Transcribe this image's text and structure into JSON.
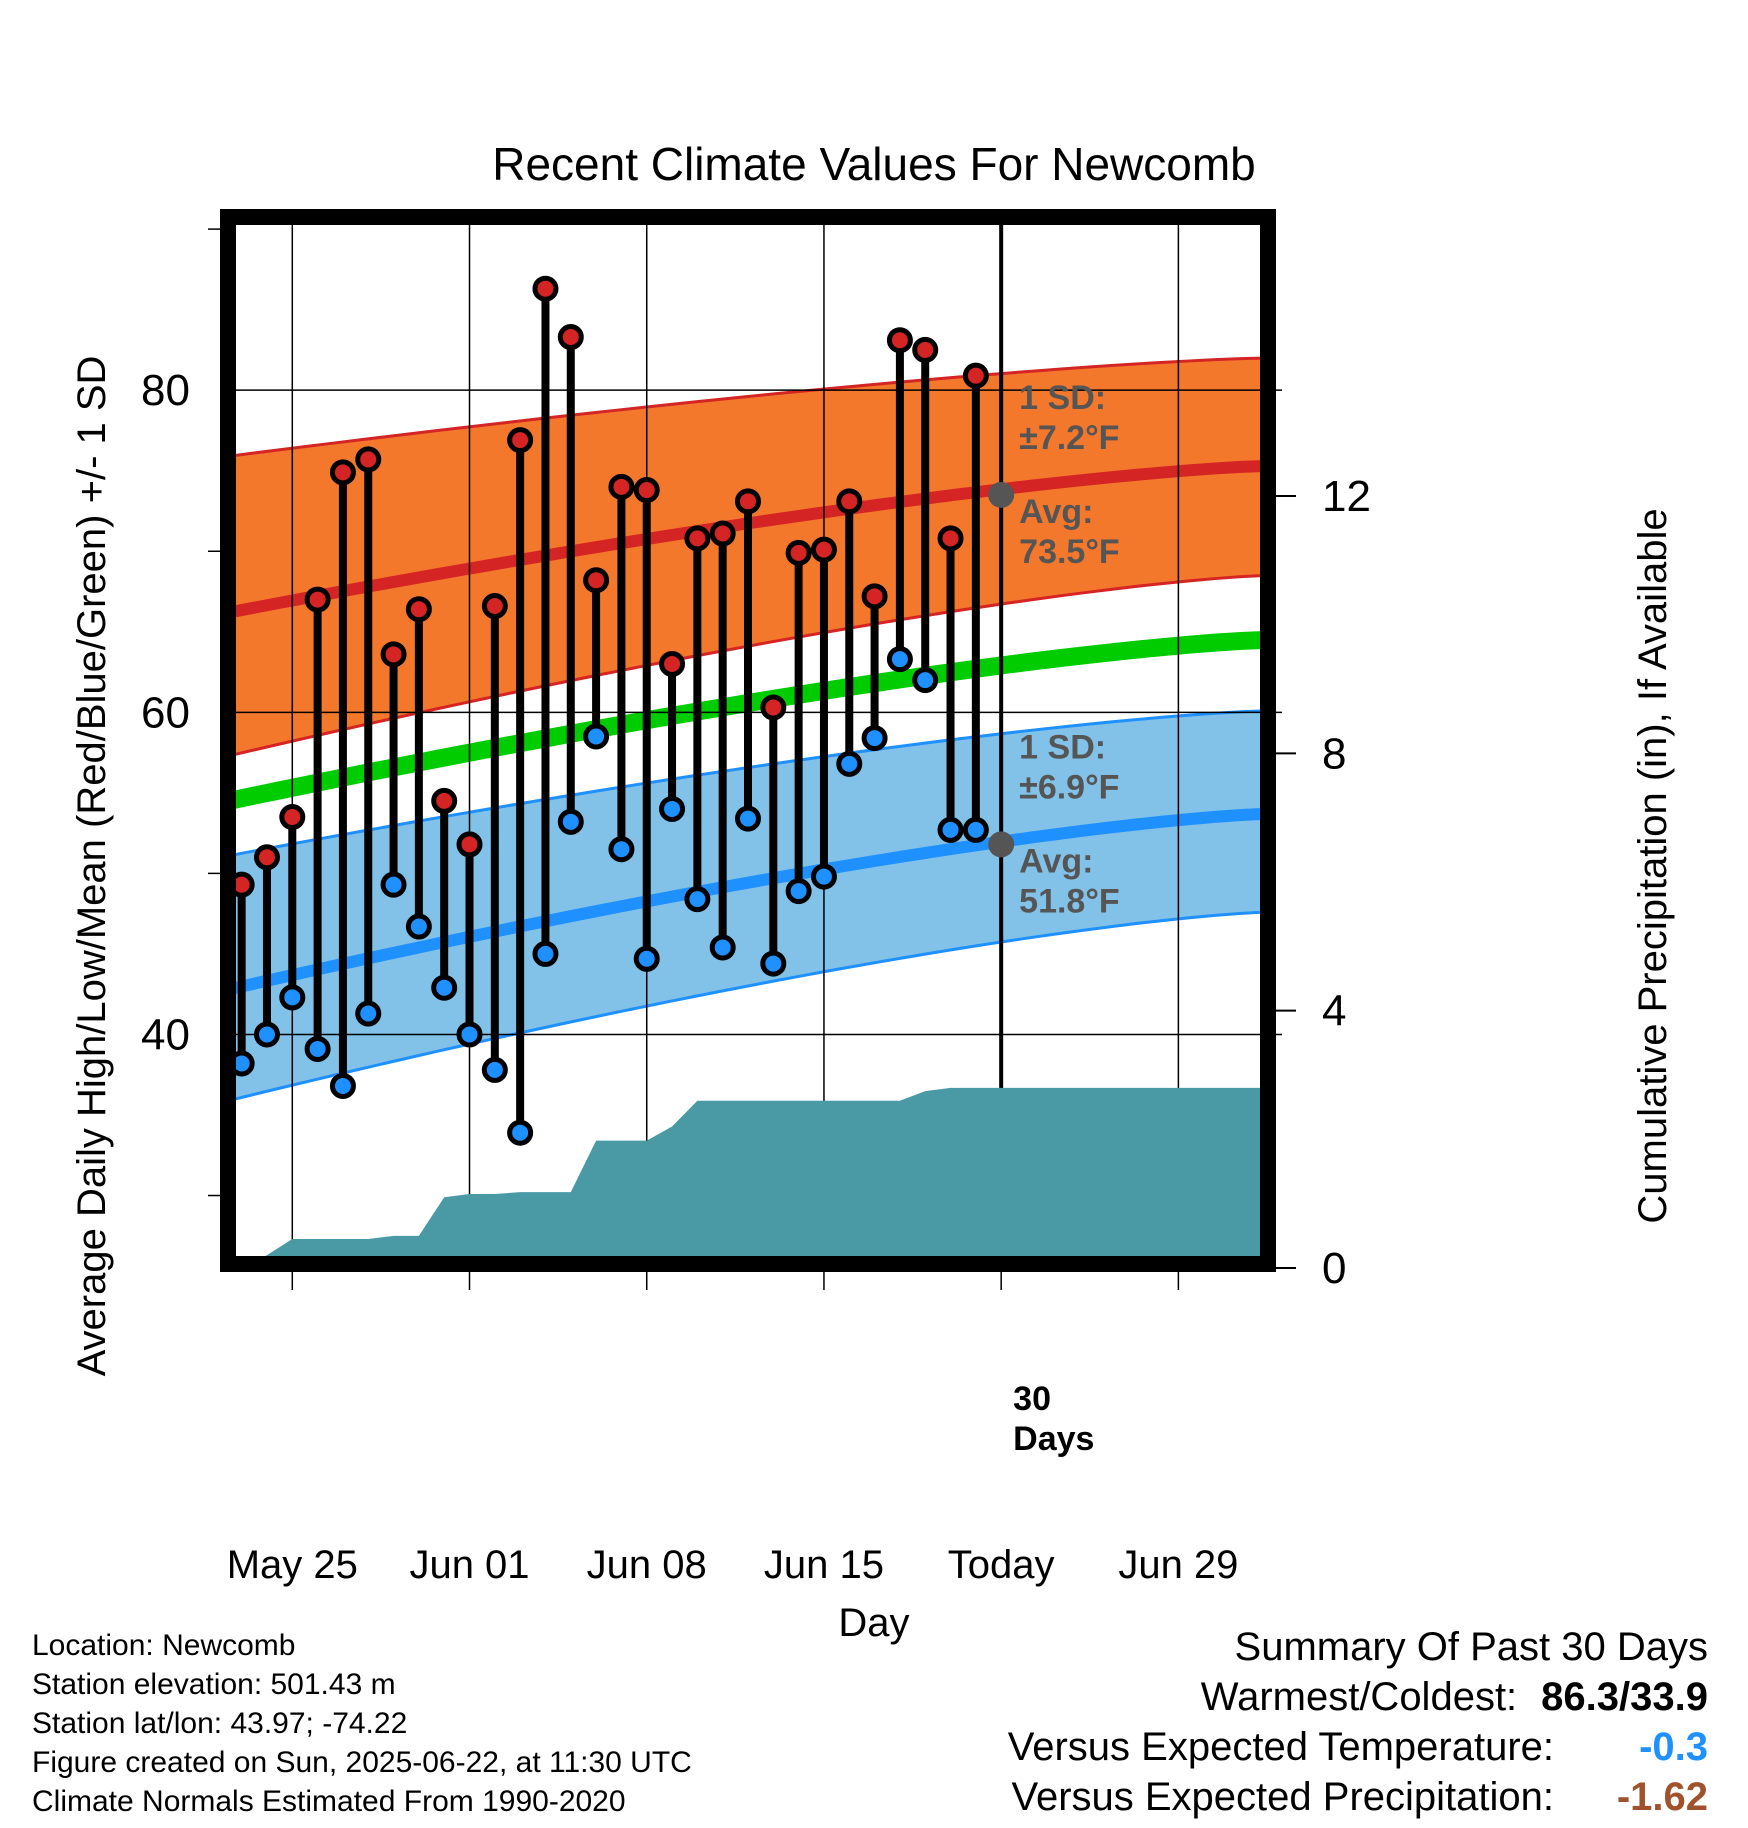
{
  "chart_data": {
    "type": "line",
    "title": "Recent Climate Values For Newcomb",
    "xlabel": "Day",
    "ylabel": "Average Daily High/Low/Mean (Red/Blue/Green) +/- 1 SD",
    "y2label": "Cumulative Precipitation (in), If Available",
    "x_range_days": [
      -30.5,
      10.5
    ],
    "ylim": [
      25.5,
      91
    ],
    "y_ticks": [
      40,
      60,
      80
    ],
    "y2lim": [
      0,
      16.4
    ],
    "y2_ticks": [
      0,
      4,
      8,
      12
    ],
    "x_ticks": [
      {
        "day": -28,
        "label": "May 25"
      },
      {
        "day": -21,
        "label": "Jun 01"
      },
      {
        "day": -14,
        "label": "Jun 08"
      },
      {
        "day": -7,
        "label": "Jun 15"
      },
      {
        "day": 0,
        "label": "Today"
      },
      {
        "day": 7,
        "label": "Jun 29"
      }
    ],
    "grid": true,
    "today_marker": {
      "day": 0,
      "label_line1": "30",
      "label_line2": "Days"
    },
    "normals": {
      "high_avg": {
        "start": 66.2,
        "end": 75.3
      },
      "low_avg": {
        "start": 42.8,
        "end": 53.7
      },
      "mean_avg": {
        "start": 54.5,
        "end": 64.5
      },
      "high_upper": {
        "start": 75.9,
        "end": 82.0
      },
      "high_lower": {
        "start": 57.3,
        "end": 68.5
      },
      "low_upper": {
        "start": 51.1,
        "end": 60.1
      },
      "low_lower": {
        "start": 35.9,
        "end": 47.6
      },
      "colors": {
        "high_band": "#f4782c",
        "high_line": "#d42424",
        "low_band": "#82c2e8",
        "low_line": "#1e90ff",
        "mean_line": "#00cc00"
      }
    },
    "today_annotations": {
      "high": {
        "value": 73.5,
        "sd_label": "1 SD:",
        "sd_value": "±7.2°F",
        "avg_label": "Avg:",
        "avg_value": "73.5°F"
      },
      "low": {
        "value": 51.8,
        "sd_label": "1 SD:",
        "sd_value": "±6.9°F",
        "avg_label": "Avg:",
        "avg_value": "51.8°F"
      }
    },
    "series": [
      {
        "name": "High",
        "color": "#d42424",
        "days": [
          -30,
          -29,
          -28,
          -27,
          -26,
          -25,
          -24,
          -23,
          -22,
          -21,
          -20,
          -19,
          -18,
          -17,
          -16,
          -15,
          -14,
          -13,
          -12,
          -11,
          -10,
          -9,
          -8,
          -7,
          -6,
          -5,
          -4,
          -3,
          -2,
          -1
        ],
        "values": [
          49.3,
          51.0,
          53.5,
          67.0,
          74.9,
          75.7,
          63.6,
          66.4,
          54.5,
          51.8,
          66.6,
          76.9,
          86.3,
          83.3,
          68.2,
          74.0,
          73.8,
          63.0,
          70.8,
          71.1,
          73.1,
          60.3,
          69.9,
          70.1,
          73.1,
          67.2,
          83.1,
          82.5,
          70.8,
          80.9
        ]
      },
      {
        "name": "Low",
        "color": "#1e90ff",
        "days": [
          -30,
          -29,
          -28,
          -27,
          -26,
          -25,
          -24,
          -23,
          -22,
          -21,
          -20,
          -19,
          -18,
          -17,
          -16,
          -15,
          -14,
          -13,
          -12,
          -11,
          -10,
          -9,
          -8,
          -7,
          -6,
          -5,
          -4,
          -3,
          -2,
          -1
        ],
        "values": [
          38.2,
          40.0,
          42.3,
          39.1,
          36.8,
          41.3,
          49.3,
          46.7,
          42.9,
          40.0,
          37.8,
          33.9,
          45.0,
          53.2,
          58.5,
          51.5,
          44.7,
          54.0,
          48.4,
          45.4,
          53.4,
          44.4,
          48.9,
          49.8,
          56.8,
          58.4,
          63.3,
          62.0,
          52.7,
          52.7
        ]
      },
      {
        "name": "Cumulative Precipitation",
        "color": "#4a9aa5",
        "axis": "y2",
        "days": [
          -30.5,
          -30,
          -29,
          -28,
          -27,
          -26,
          -25,
          -24,
          -23,
          -22,
          -21,
          -20,
          -19,
          -18,
          -17,
          -16,
          -15,
          -14,
          -13,
          -12,
          -11,
          -10,
          -9,
          -8,
          -7,
          -6,
          -5,
          -4,
          -3,
          -2,
          -1,
          0,
          10.5
        ],
        "values": [
          0,
          0,
          0.2,
          0.45,
          0.45,
          0.45,
          0.45,
          0.5,
          0.5,
          1.1,
          1.15,
          1.15,
          1.18,
          1.18,
          1.18,
          1.98,
          1.98,
          1.98,
          2.2,
          2.6,
          2.6,
          2.6,
          2.6,
          2.6,
          2.6,
          2.6,
          2.6,
          2.6,
          2.75,
          2.8,
          2.8,
          2.8,
          2.8
        ]
      }
    ]
  },
  "station_info": {
    "location": "Location: Newcomb",
    "elevation": "Station elevation: 501.43 m",
    "latlon": "Station lat/lon: 43.97; -74.22",
    "created": "Figure created on Sun, 2025-06-22, at 11:30 UTC",
    "normals_period": "Climate Normals Estimated From 1990-2020"
  },
  "summary": {
    "heading": "Summary Of Past 30 Days",
    "warmest_coldest_label": "Warmest/Coldest:",
    "warmest_coldest_value": "86.3/33.9",
    "temp_label": "Versus Expected Temperature:",
    "temp_value": "-0.3",
    "temp_color": "#1e90ff",
    "precip_label": "Versus Expected Precipitation:",
    "precip_value": "-1.62",
    "precip_color": "#a0522d"
  }
}
